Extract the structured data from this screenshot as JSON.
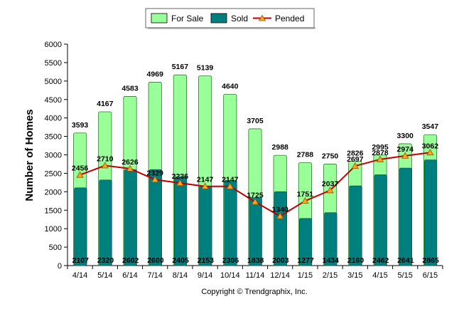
{
  "chart_data": {
    "type": "bar",
    "title": "",
    "xlabel": "",
    "ylabel": "Number of Homes",
    "ylim": [
      0,
      6000
    ],
    "ytick_step": 500,
    "grid": false,
    "legend": "top-center",
    "categories": [
      "4/14",
      "5/14",
      "6/14",
      "7/14",
      "8/14",
      "9/14",
      "10/14",
      "11/14",
      "12/14",
      "1/15",
      "2/15",
      "3/15",
      "4/15",
      "5/15",
      "6/15"
    ],
    "series": [
      {
        "name": "For Sale",
        "kind": "bar",
        "color": "#99ff99",
        "values": [
          3593,
          4167,
          4583,
          4969,
          5167,
          5139,
          4640,
          3705,
          2988,
          2788,
          2750,
          2826,
          2995,
          3300,
          3547
        ]
      },
      {
        "name": "Sold",
        "kind": "bar",
        "color": "#007f7f",
        "values": [
          2107,
          2320,
          2602,
          2600,
          2405,
          2153,
          2306,
          1838,
          2003,
          1277,
          1434,
          2160,
          2462,
          2641,
          2865
        ]
      },
      {
        "name": "Pended",
        "kind": "line",
        "color": "#c00000",
        "values": [
          2456,
          2710,
          2626,
          2329,
          2236,
          2147,
          2147,
          1725,
          1340,
          1751,
          2037,
          2697,
          2878,
          2974,
          3062
        ]
      }
    ],
    "footer": "Copyright © Trendgraphix, Inc."
  }
}
